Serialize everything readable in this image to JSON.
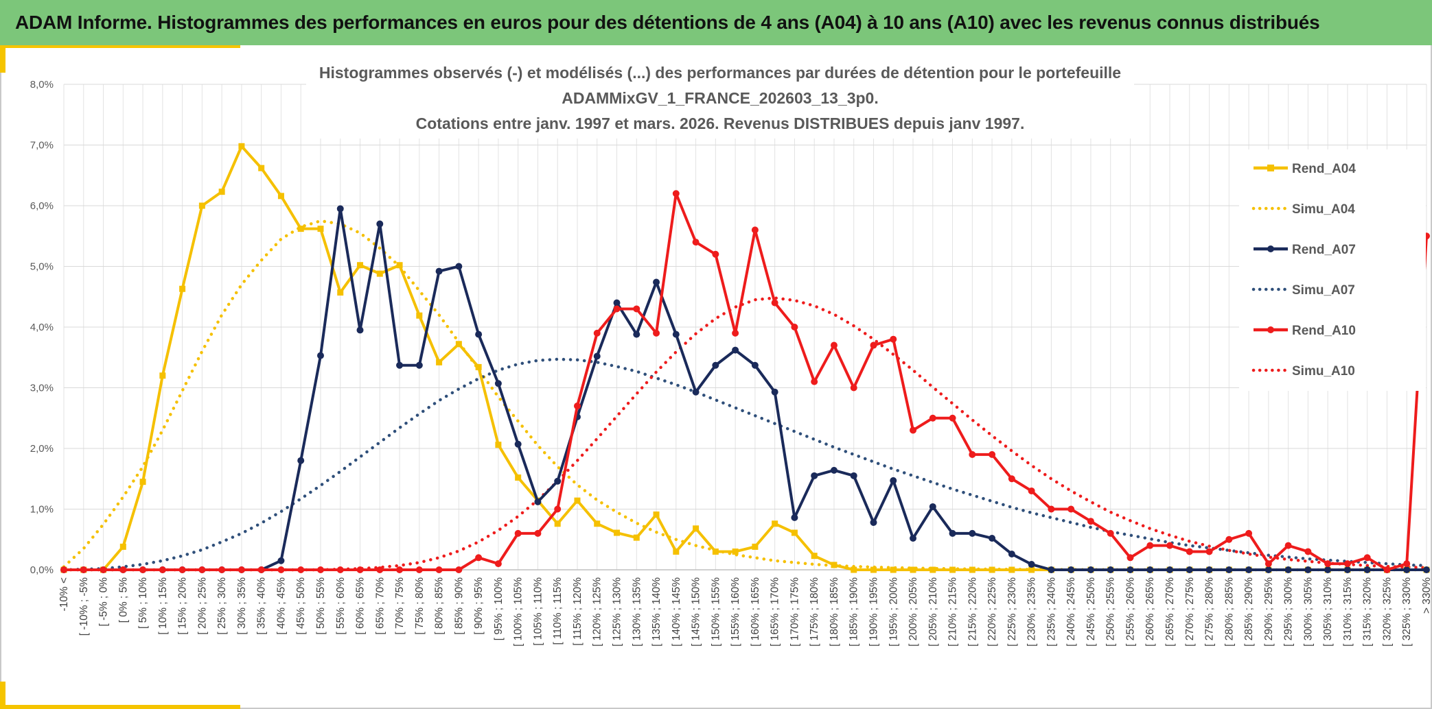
{
  "page_title": "ADAM Informe. Histogrammes des performances en euros pour des détentions de 4 ans (A04) à 10 ans (A10) avec les revenus connus distribués",
  "chart_data": {
    "type": "line",
    "title_lines": [
      "Histogrammes observés (-) et modélisés (...) des performances par durées de détention pour le portefeuille",
      "ADAMMixGV_1_FRANCE_202603_13_3p0.",
      "Cotations entre janv. 1997 et mars. 2026. Revenus DISTRIBUES depuis janv 1997."
    ],
    "xlabel": "",
    "ylabel": "",
    "ylim": [
      0,
      8
    ],
    "y_ticks": [
      "0,0%",
      "1,0%",
      "2,0%",
      "3,0%",
      "4,0%",
      "5,0%",
      "6,0%",
      "7,0%",
      "8,0%"
    ],
    "grid": true,
    "legend_position": "right",
    "categories": [
      "-10% <",
      "[ -10% ; -5%",
      "[ -5% ; 0%",
      "[ 0% ; 5%",
      "[ 5% ; 10%",
      "[ 10% ; 15%",
      "[ 15% ; 20%",
      "[ 20% ; 25%",
      "[ 25% ; 30%",
      "[ 30% ; 35%",
      "[ 35% ; 40%",
      "[ 40% ; 45%",
      "[ 45% ; 50%",
      "[ 50% ; 55%",
      "[ 55% ; 60%",
      "[ 60% ; 65%",
      "[ 65% ; 70%",
      "[ 70% ; 75%",
      "[ 75% ; 80%",
      "[ 80% ; 85%",
      "[ 85% ; 90%",
      "[ 90% ; 95%",
      "[ 95% ; 100%",
      "[ 100% ; 105%",
      "[ 105% ; 110%",
      "[ 110% ; 115%",
      "[ 115% ; 120%",
      "[ 120% ; 125%",
      "[ 125% ; 130%",
      "[ 130% ; 135%",
      "[ 135% ; 140%",
      "[ 140% ; 145%",
      "[ 145% ; 150%",
      "[ 150% ; 155%",
      "[ 155% ; 160%",
      "[ 160% ; 165%",
      "[ 165% ; 170%",
      "[ 170% ; 175%",
      "[ 175% ; 180%",
      "[ 180% ; 185%",
      "[ 185% ; 190%",
      "[ 190% ; 195%",
      "[ 195% ; 200%",
      "[ 200% ; 205%",
      "[ 205% ; 210%",
      "[ 210% ; 215%",
      "[ 215% ; 220%",
      "[ 220% ; 225%",
      "[ 225% ; 230%",
      "[ 230% ; 235%",
      "[ 235% ; 240%",
      "[ 240% ; 245%",
      "[ 245% ; 250%",
      "[ 250% ; 255%",
      "[ 255% ; 260%",
      "[ 260% ; 265%",
      "[ 265% ; 270%",
      "[ 270% ; 275%",
      "[ 275% ; 280%",
      "[ 280% ; 285%",
      "[ 285% ; 290%",
      "[ 290% ; 295%",
      "[ 295% ; 300%",
      "[ 300% ; 305%",
      "[ 305% ; 310%",
      "[ 310% ; 315%",
      "[ 315% ; 320%",
      "[ 320% ; 325%",
      "[ 325% ; 330%",
      "> 330%"
    ],
    "series": [
      {
        "name": "Rend_A04",
        "color": "#f5c000",
        "style": "solid",
        "marker": "square",
        "values": [
          0,
          0,
          0,
          0.38,
          1.45,
          3.2,
          4.63,
          6.0,
          6.23,
          6.98,
          6.62,
          6.16,
          5.62,
          5.62,
          4.57,
          5.02,
          4.88,
          5.02,
          4.19,
          3.42,
          3.72,
          3.34,
          2.06,
          1.52,
          1.14,
          0.76,
          1.14,
          0.76,
          0.61,
          0.53,
          0.91,
          0.3,
          0.68,
          0.3,
          0.3,
          0.38,
          0.76,
          0.61,
          0.23,
          0.08,
          0,
          0,
          0,
          0,
          0,
          0,
          0,
          0,
          0,
          0,
          0,
          0,
          0,
          0,
          0,
          0,
          0,
          0,
          0,
          0,
          0,
          0,
          0,
          0,
          0,
          0,
          0,
          0,
          0,
          0
        ]
      },
      {
        "name": "Simu_A04",
        "color": "#f5c000",
        "style": "dotted",
        "marker": "none",
        "values": [
          0.05,
          0.35,
          0.75,
          1.2,
          1.7,
          2.3,
          2.95,
          3.6,
          4.2,
          4.7,
          5.1,
          5.45,
          5.65,
          5.75,
          5.7,
          5.55,
          5.3,
          5.0,
          4.6,
          4.2,
          3.75,
          3.3,
          2.85,
          2.45,
          2.05,
          1.7,
          1.4,
          1.15,
          0.95,
          0.77,
          0.62,
          0.5,
          0.4,
          0.32,
          0.25,
          0.2,
          0.15,
          0.12,
          0.09,
          0.07,
          0.055,
          0.045,
          0.035,
          0.028,
          0.022,
          0.017,
          0.013,
          0.01,
          0.008,
          0.006,
          0.005,
          0.004,
          0.003,
          0.002,
          0.002,
          0.001,
          0.001,
          0.001,
          0.001,
          0.001,
          0,
          0,
          0,
          0,
          0,
          0,
          0,
          0,
          0,
          0
        ]
      },
      {
        "name": "Rend_A07",
        "color": "#1a2a5a",
        "style": "solid",
        "marker": "circle",
        "values": [
          0,
          0,
          0,
          0,
          0,
          0,
          0,
          0,
          0,
          0,
          0,
          0.15,
          1.8,
          3.53,
          5.95,
          3.95,
          5.7,
          3.37,
          3.37,
          4.92,
          5.0,
          3.88,
          3.07,
          2.07,
          1.12,
          1.46,
          2.52,
          3.52,
          4.4,
          3.88,
          4.74,
          3.88,
          2.93,
          3.37,
          3.62,
          3.37,
          2.93,
          0.86,
          1.55,
          1.64,
          1.55,
          0.78,
          1.47,
          0.52,
          1.04,
          0.6,
          0.6,
          0.52,
          0.26,
          0.09,
          0,
          0,
          0,
          0,
          0,
          0,
          0,
          0,
          0,
          0,
          0,
          0,
          0,
          0,
          0,
          0,
          0,
          0,
          0,
          0
        ]
      },
      {
        "name": "Simu_A07",
        "color": "#2f4f7a",
        "style": "dotted",
        "marker": "none",
        "values": [
          0,
          0.01,
          0.02,
          0.05,
          0.09,
          0.15,
          0.23,
          0.33,
          0.46,
          0.6,
          0.77,
          0.96,
          1.17,
          1.39,
          1.62,
          1.86,
          2.1,
          2.34,
          2.57,
          2.79,
          2.98,
          3.15,
          3.29,
          3.39,
          3.45,
          3.47,
          3.46,
          3.42,
          3.35,
          3.27,
          3.16,
          3.05,
          2.93,
          2.8,
          2.67,
          2.54,
          2.41,
          2.28,
          2.15,
          2.02,
          1.9,
          1.78,
          1.66,
          1.55,
          1.44,
          1.33,
          1.23,
          1.13,
          1.03,
          0.94,
          0.86,
          0.78,
          0.7,
          0.63,
          0.57,
          0.51,
          0.45,
          0.4,
          0.36,
          0.32,
          0.28,
          0.24,
          0.21,
          0.18,
          0.16,
          0.14,
          0.12,
          0.1,
          0.08,
          0.07
        ]
      },
      {
        "name": "Rend_A10",
        "color": "#ee1c1c",
        "style": "solid",
        "marker": "circle",
        "values": [
          0,
          0,
          0,
          0,
          0,
          0,
          0,
          0,
          0,
          0,
          0,
          0,
          0,
          0,
          0,
          0,
          0,
          0,
          0,
          0,
          0,
          0.2,
          0.1,
          0.6,
          0.6,
          1.0,
          2.7,
          3.9,
          4.3,
          4.3,
          3.9,
          6.2,
          5.4,
          5.2,
          3.9,
          5.6,
          4.4,
          4.0,
          3.1,
          3.7,
          3.0,
          3.7,
          3.8,
          2.3,
          2.5,
          2.5,
          1.9,
          1.9,
          1.5,
          1.3,
          1.0,
          1.0,
          0.8,
          0.6,
          0.2,
          0.4,
          0.4,
          0.3,
          0.3,
          0.5,
          0.6,
          0.1,
          0.4,
          0.3,
          0.1,
          0.1,
          0.2,
          0,
          0.1,
          5.5
        ]
      },
      {
        "name": "Simu_A10",
        "color": "#ee1c1c",
        "style": "dotted",
        "marker": "none",
        "values": [
          0,
          0,
          0,
          0,
          0,
          0,
          0,
          0,
          0,
          0,
          0,
          0,
          0,
          0,
          0.01,
          0.02,
          0.04,
          0.07,
          0.12,
          0.2,
          0.31,
          0.46,
          0.65,
          0.88,
          1.15,
          1.46,
          1.8,
          2.16,
          2.53,
          2.9,
          3.26,
          3.59,
          3.89,
          4.14,
          4.33,
          4.45,
          4.48,
          4.44,
          4.35,
          4.21,
          4.02,
          3.8,
          3.55,
          3.29,
          3.01,
          2.74,
          2.47,
          2.21,
          1.96,
          1.72,
          1.5,
          1.3,
          1.12,
          0.95,
          0.81,
          0.68,
          0.57,
          0.47,
          0.39,
          0.32,
          0.26,
          0.21,
          0.17,
          0.14,
          0.11,
          0.09,
          0.07,
          0.055,
          0.045,
          0.035
        ]
      }
    ]
  }
}
